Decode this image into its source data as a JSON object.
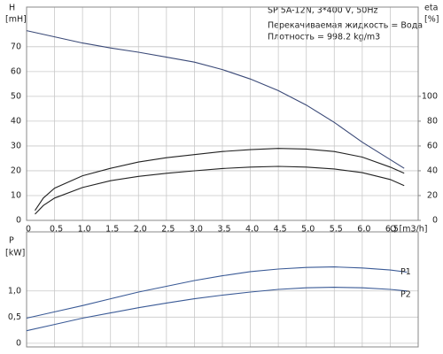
{
  "chart_data": [
    {
      "type": "line",
      "title": "SP 5A-12N, 3*400 V, 50Hz",
      "annotations": [
        "Перекачиваемая жидкость = Вода",
        "Плотность = 998.2 kg/m3"
      ],
      "ylabel": "H",
      "yunit": "[mH]",
      "y2label": "eta",
      "y2unit": "[%]",
      "xlabel": "Q [m3/h]",
      "xlim": [
        0,
        7
      ],
      "ylim": [
        0,
        86
      ],
      "y2lim": [
        0,
        172
      ],
      "xticks": [
        0,
        {
          "value": 0.5,
          "label": "0,5"
        },
        {
          "value": 1,
          "label": "1,0"
        },
        {
          "value": 1.5,
          "label": "1,5"
        },
        {
          "value": 2,
          "label": "2,0"
        },
        {
          "value": 2.5,
          "label": "2,5"
        },
        {
          "value": 3,
          "label": "3,0"
        },
        {
          "value": 3.5,
          "label": "3,5"
        },
        {
          "value": 4,
          "label": "4,0"
        },
        {
          "value": 4.5,
          "label": "4,5"
        },
        {
          "value": 5,
          "label": "5,0"
        },
        {
          "value": 5.5,
          "label": "5,5"
        },
        {
          "value": 6,
          "label": "6,0"
        },
        {
          "value": 6.5,
          "label": "6,5"
        }
      ],
      "yticks": [
        0,
        10,
        20,
        30,
        40,
        50,
        60,
        70
      ],
      "y2ticks": [
        0,
        20,
        40,
        60,
        80,
        100
      ],
      "grid": true,
      "series": [
        {
          "color": "#3b4a78",
          "x": [
            0,
            0.5,
            1,
            1.5,
            2,
            2.5,
            3,
            3.5,
            4,
            4.5,
            5,
            5.5,
            6,
            6.5,
            6.75
          ],
          "values": [
            76.5,
            74,
            71.5,
            69.5,
            67.8,
            65.8,
            63.8,
            60.8,
            57,
            52.3,
            46.5,
            39.5,
            31.5,
            24.5,
            21
          ]
        },
        {
          "color": "#222222",
          "axis": "y2",
          "x": [
            0.15,
            0.3,
            0.5,
            1,
            1.5,
            2,
            2.5,
            3,
            3.5,
            4,
            4.5,
            5,
            5.5,
            6,
            6.5,
            6.75
          ],
          "values": [
            8,
            18,
            26,
            36,
            42,
            47,
            50.5,
            53,
            55.5,
            57,
            58,
            57.5,
            55.5,
            51,
            43,
            38
          ]
        },
        {
          "color": "#222222",
          "axis": "y2",
          "x": [
            0.15,
            0.3,
            0.5,
            1,
            1.5,
            2,
            2.5,
            3,
            3.5,
            4,
            4.5,
            5,
            5.5,
            6,
            6.5,
            6.75
          ],
          "values": [
            5,
            12,
            18,
            26.5,
            32,
            35.5,
            38,
            40,
            41.8,
            43,
            43.5,
            43,
            41.5,
            38.5,
            33,
            28
          ]
        }
      ]
    },
    {
      "type": "line",
      "ylabel": "P",
      "yunit": "[kW]",
      "xlim": [
        0,
        7
      ],
      "ylim": [
        -0.07,
        2.13
      ],
      "xticks": [
        0,
        0.5,
        1,
        1.5,
        2,
        2.5,
        3,
        3.5,
        4,
        4.5,
        5,
        5.5,
        6,
        6.5
      ],
      "yticks": [
        0,
        {
          "value": 0.5,
          "label": "0,5"
        },
        {
          "value": 1,
          "label": "1,0"
        }
      ],
      "grid": true,
      "series": [
        {
          "name": "P1",
          "color": "#3a5a96",
          "x": [
            0,
            0.5,
            1,
            1.5,
            2,
            2.5,
            3,
            3.5,
            4,
            4.5,
            5,
            5.5,
            6,
            6.5,
            6.8
          ],
          "values": [
            0.48,
            0.6,
            0.72,
            0.85,
            0.98,
            1.09,
            1.2,
            1.29,
            1.37,
            1.42,
            1.45,
            1.46,
            1.44,
            1.4,
            1.36
          ]
        },
        {
          "name": "P2",
          "color": "#3a5a96",
          "x": [
            0,
            0.5,
            1,
            1.5,
            2,
            2.5,
            3,
            3.5,
            4,
            4.5,
            5,
            5.5,
            6,
            6.5,
            6.8
          ],
          "values": [
            0.24,
            0.36,
            0.48,
            0.58,
            0.68,
            0.77,
            0.85,
            0.92,
            0.98,
            1.03,
            1.06,
            1.07,
            1.06,
            1.03,
            1.0
          ]
        }
      ]
    }
  ]
}
